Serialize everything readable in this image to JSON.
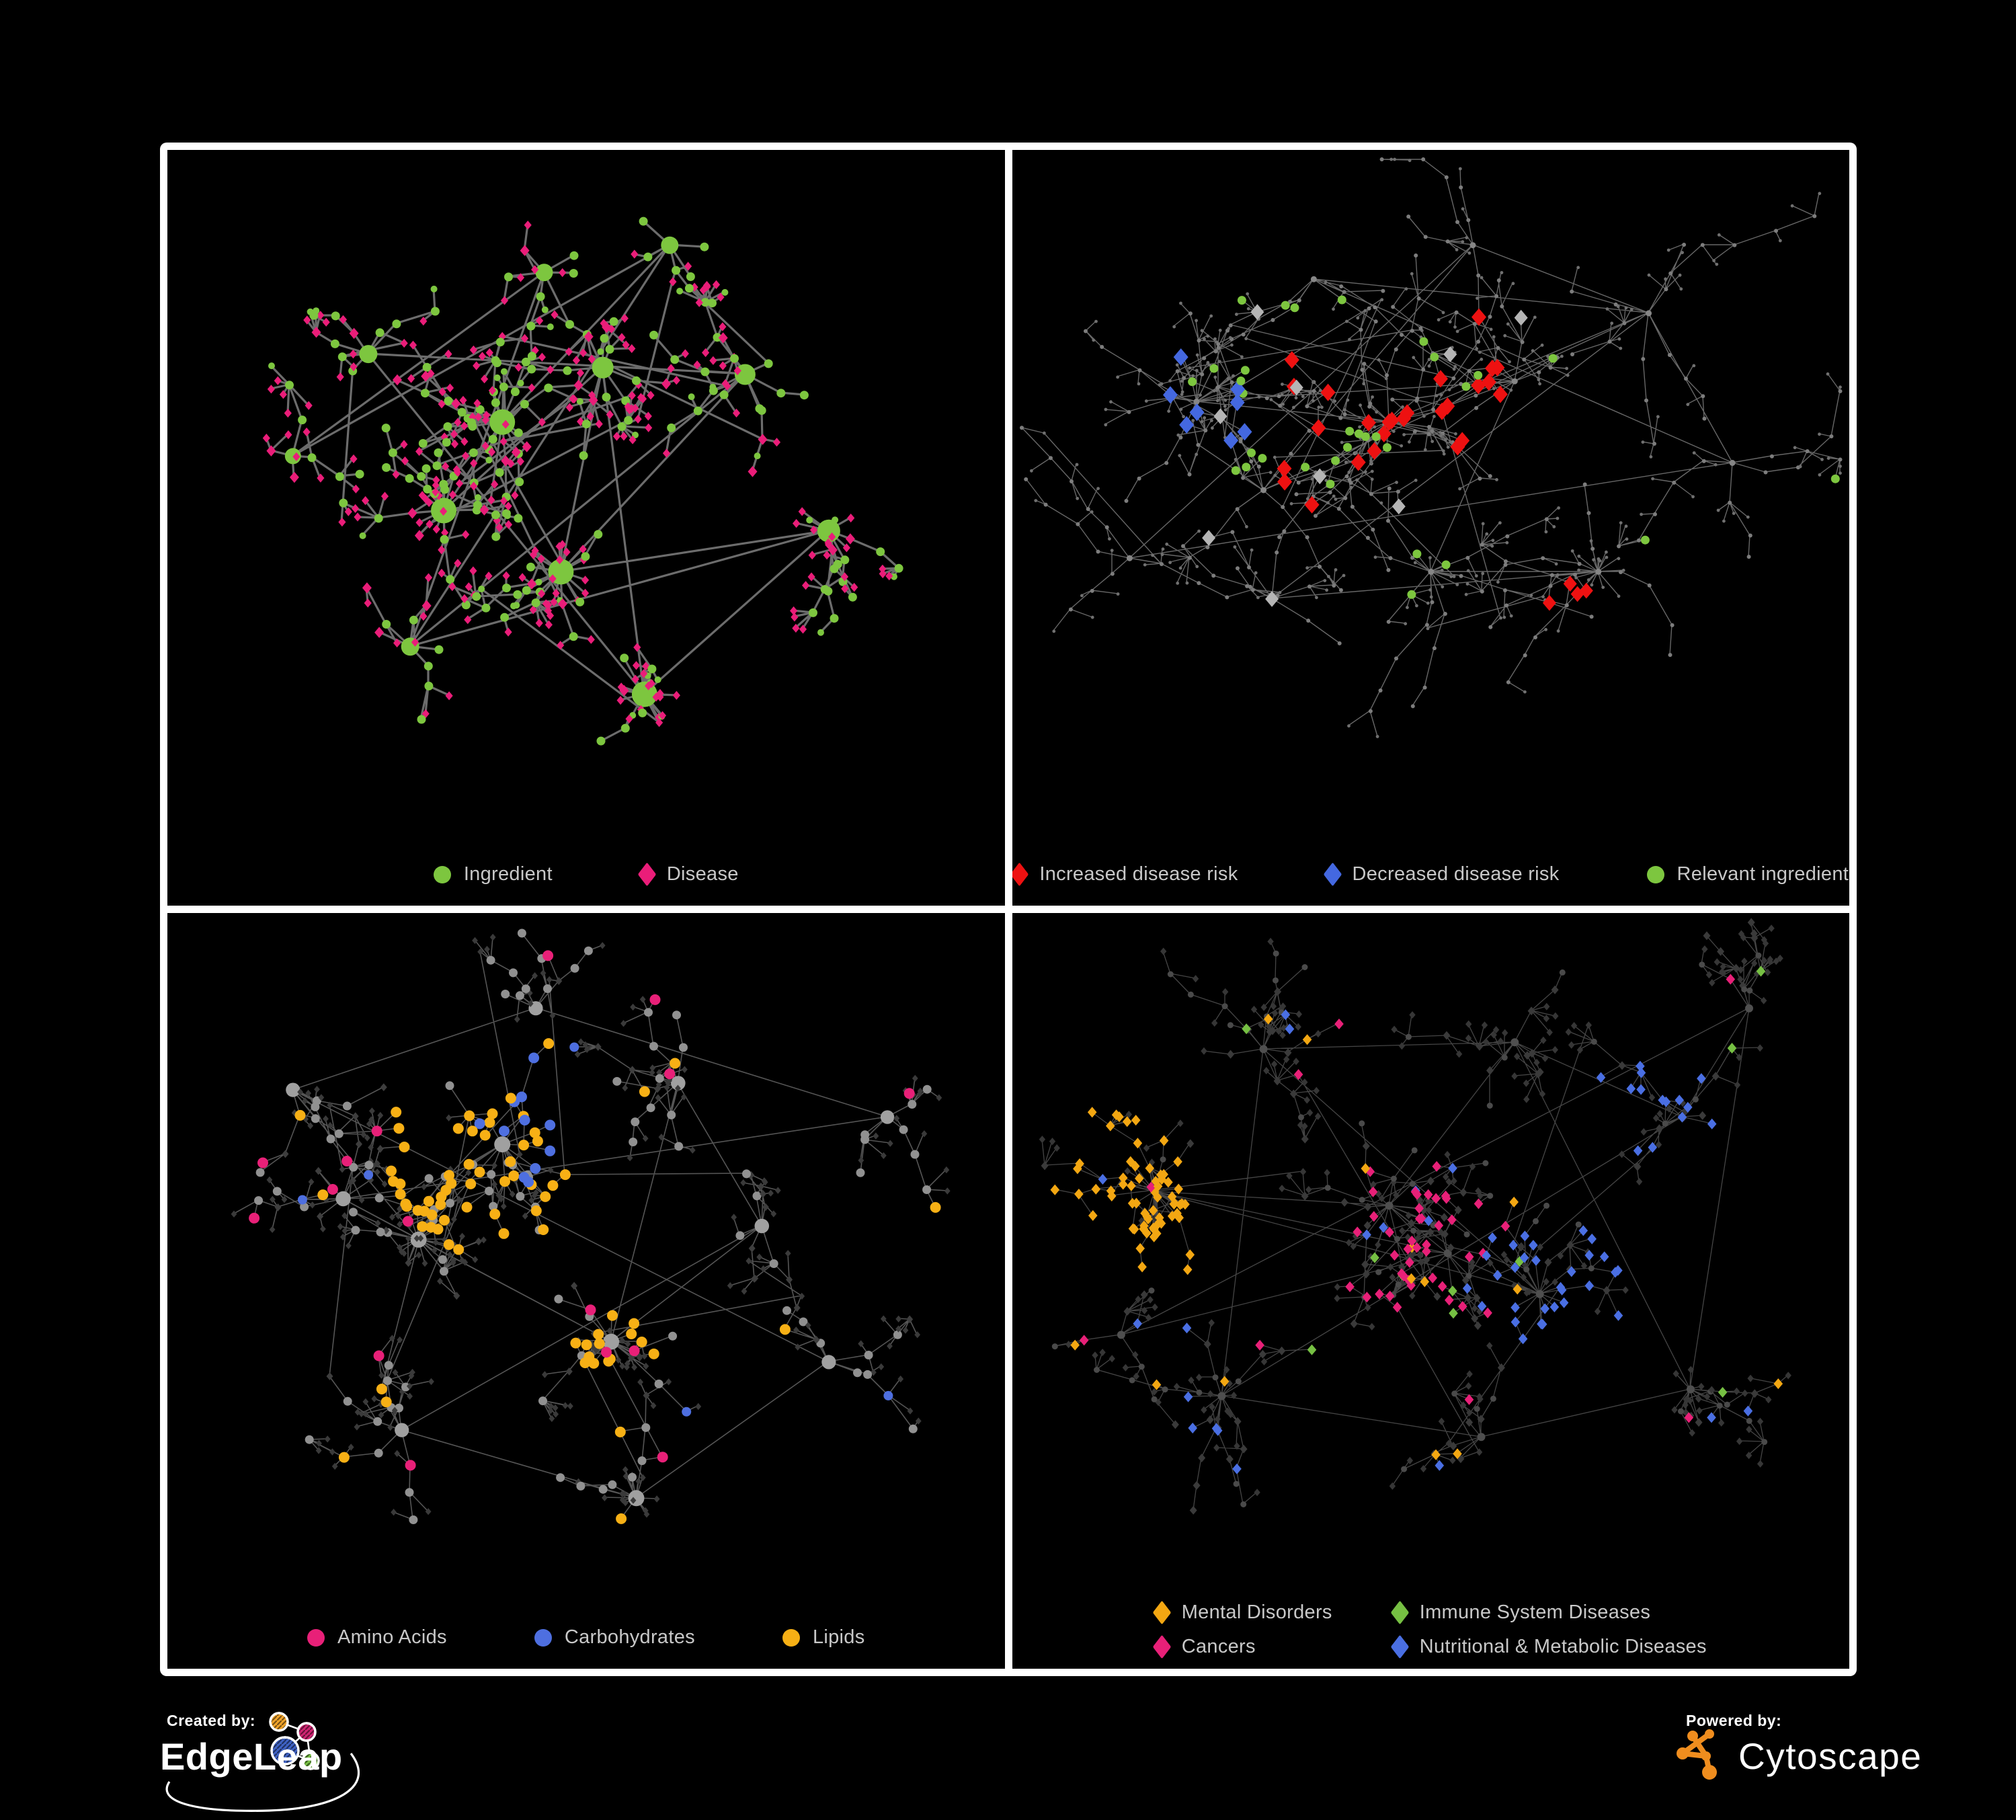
{
  "figure": {
    "background": "#000000",
    "frame_color": "#ffffff"
  },
  "footer": {
    "created_by": "Created by:",
    "edgeleap_brand": "EdgeLeap",
    "powered_by": "Powered by:",
    "cytoscape_brand": "Cytoscape",
    "edgeleap_colors": {
      "orange": "#f0a329",
      "pink": "#cf2572",
      "blue": "#3f62c4",
      "green": "#76c043"
    },
    "cytoscape_orange": "#ef8d1e"
  },
  "panels": [
    {
      "id": "ingredient-disease",
      "legend": {
        "columns": 3,
        "items": [
          {
            "shape": "circle",
            "color": "#7dc63f",
            "label": "Ingredient"
          },
          {
            "shape": "diamond",
            "color": "#ea1d79",
            "label": "Disease"
          }
        ]
      },
      "net": {
        "seed": 7,
        "steps": [
          1,
          3
        ],
        "step": [
          28,
          62
        ],
        "fan": 8,
        "edge": {
          "color": "#7f7f7f",
          "width": 3.2,
          "opacity": 0.85
        },
        "hubScale": 0.5,
        "hubMax": 19,
        "base": {
          "hub": {
            "shape": "circle",
            "color": "#7dc63f",
            "r": 9
          },
          "mid": {
            "shape": "circle",
            "color": "#7dc63f",
            "r": 6.5,
            "alt": {
              "shape": "diamond",
              "color": "#ea1d79",
              "r": 7,
              "prob": 0.16
            }
          },
          "leaf": {
            "shape": "diamond",
            "color": "#ea1d79",
            "r": 5.6,
            "alt": {
              "shape": "circle",
              "color": "#7dc63f",
              "r": 5,
              "prob": 0.12
            }
          }
        },
        "clusters": [
          [
            0.4,
            0.4,
            16,
            0
          ],
          [
            0.33,
            0.53,
            13,
            6
          ],
          [
            0.52,
            0.32,
            9,
            0
          ],
          [
            0.47,
            0.62,
            8,
            14
          ],
          [
            0.69,
            0.33,
            9,
            0
          ],
          [
            0.24,
            0.3,
            6,
            0
          ],
          [
            0.57,
            0.8,
            5,
            18
          ],
          [
            0.79,
            0.56,
            5,
            8
          ],
          [
            0.29,
            0.73,
            5,
            0
          ],
          [
            0.6,
            0.14,
            5,
            0
          ],
          [
            0.15,
            0.45,
            4,
            0
          ],
          [
            0.45,
            0.18,
            5,
            0
          ]
        ],
        "specials": []
      }
    },
    {
      "id": "disease-risk",
      "legend": {
        "columns": 3,
        "items": [
          {
            "shape": "diamond",
            "color": "#ee1111",
            "label": "Increased disease risk"
          },
          {
            "shape": "diamond",
            "color": "#4468e0",
            "label": "Decreased disease risk"
          },
          {
            "shape": "circle",
            "color": "#7dc63f",
            "label": "Relevant ingredient"
          }
        ]
      },
      "net": {
        "seed": 19,
        "steps": [
          2,
          5
        ],
        "step": [
          30,
          72
        ],
        "fan": 7,
        "edge": {
          "color": "#8a8a8a",
          "width": 1.4,
          "opacity": 0.75
        },
        "hubScale": 0,
        "hubMax": 5,
        "base": {
          "hub": {
            "shape": "circle",
            "color": "#868686",
            "r": 4.5
          },
          "mid": {
            "shape": "circle",
            "color": "#7d7d7d",
            "r": 3
          },
          "leaf": {
            "shape": "circle",
            "color": "#707070",
            "r": 2.4
          }
        },
        "clusters": [
          [
            0.45,
            0.4,
            16,
            0
          ],
          [
            0.22,
            0.37,
            10,
            4
          ],
          [
            0.6,
            0.34,
            8,
            0
          ],
          [
            0.5,
            0.62,
            7,
            10
          ],
          [
            0.7,
            0.62,
            6,
            16
          ],
          [
            0.31,
            0.66,
            6,
            0
          ],
          [
            0.76,
            0.24,
            6,
            0
          ],
          [
            0.36,
            0.19,
            6,
            0
          ],
          [
            0.86,
            0.46,
            4,
            0
          ],
          [
            0.14,
            0.6,
            4,
            0
          ],
          [
            0.55,
            0.14,
            4,
            0
          ],
          [
            0.3,
            0.5,
            8,
            0
          ]
        ],
        "specials": [
          {
            "shape": "diamond",
            "color": "#ee1111",
            "r": 11,
            "count": 26,
            "near": [
              0.47,
              0.4
            ],
            "radius": 0.2
          },
          {
            "shape": "diamond",
            "color": "#ee1111",
            "r": 10,
            "count": 4,
            "near": [
              0.7,
              0.72
            ],
            "radius": 0.1
          },
          {
            "shape": "diamond",
            "color": "#4468e0",
            "r": 11,
            "count": 8,
            "near": [
              0.21,
              0.37
            ],
            "radius": 0.1
          },
          {
            "shape": "diamond",
            "color": "#4468e0",
            "r": 10,
            "count": 3,
            "near": [
              0.88,
              0.24
            ],
            "radius": 0.05
          },
          {
            "shape": "diamond",
            "color": "#b5b5b5",
            "r": 10,
            "count": 9,
            "near": [
              0.42,
              0.42
            ],
            "radius": 0.3
          },
          {
            "shape": "circle",
            "color": "#7dc63f",
            "r": 6.5,
            "count": 26,
            "near": [
              0.42,
              0.4
            ],
            "radius": 0.26
          },
          {
            "shape": "circle",
            "color": "#7dc63f",
            "r": 6.5,
            "count": 6
          }
        ]
      }
    },
    {
      "id": "nutrient-classes",
      "legend": {
        "columns": 3,
        "items": [
          {
            "shape": "circle",
            "color": "#e82078",
            "label": "Amino Acids"
          },
          {
            "shape": "circle",
            "color": "#4e6fe0",
            "label": "Carbohydrates"
          },
          {
            "shape": "circle",
            "color": "#f7b015",
            "label": "Lipids"
          }
        ]
      },
      "net": {
        "seed": 37,
        "steps": [
          1,
          3
        ],
        "step": [
          28,
          62
        ],
        "fan": 8,
        "edge": {
          "color": "#aaaaaa",
          "width": 1.6,
          "opacity": 0.5
        },
        "hubScale": 0.2,
        "hubMax": 12,
        "base": {
          "hub": {
            "shape": "circle",
            "color": "#a0a0a0",
            "r": 9
          },
          "mid": {
            "shape": "circle",
            "color": "#919191",
            "r": 6.5,
            "alt": {
              "shape": "diamond",
              "color": "#3e3e3e",
              "r": 5,
              "prob": 0.3
            }
          },
          "leaf": {
            "shape": "diamond",
            "color": "#3a3a3a",
            "r": 4.4
          }
        },
        "clusters": [
          [
            0.4,
            0.34,
            14,
            0
          ],
          [
            0.3,
            0.48,
            14,
            8
          ],
          [
            0.21,
            0.42,
            8,
            0
          ],
          [
            0.53,
            0.63,
            7,
            20
          ],
          [
            0.61,
            0.25,
            6,
            0
          ],
          [
            0.71,
            0.46,
            6,
            0
          ],
          [
            0.28,
            0.76,
            6,
            0
          ],
          [
            0.56,
            0.86,
            4,
            14
          ],
          [
            0.79,
            0.66,
            5,
            0
          ],
          [
            0.15,
            0.26,
            4,
            0
          ],
          [
            0.44,
            0.14,
            5,
            0
          ],
          [
            0.86,
            0.3,
            4,
            0
          ]
        ],
        "specials": [
          {
            "shape": "circle",
            "color": "#f7b015",
            "r": 8,
            "count": 48,
            "near": [
              0.4,
              0.34
            ],
            "radius": 0.17
          },
          {
            "shape": "circle",
            "color": "#f7b015",
            "r": 8,
            "count": 12,
            "near": [
              0.53,
              0.64
            ],
            "radius": 0.07
          },
          {
            "shape": "circle",
            "color": "#f7b015",
            "r": 8,
            "count": 16
          },
          {
            "shape": "circle",
            "color": "#4e6fe0",
            "r": 8,
            "count": 11,
            "near": [
              0.43,
              0.3
            ],
            "radius": 0.11
          },
          {
            "shape": "circle",
            "color": "#4e6fe0",
            "r": 7,
            "count": 5
          },
          {
            "shape": "circle",
            "color": "#e82078",
            "r": 8,
            "count": 16
          }
        ]
      }
    },
    {
      "id": "disease-classes",
      "legend": {
        "columns": 2,
        "items": [
          {
            "shape": "diamond",
            "color": "#f3a712",
            "label": "Mental Disorders"
          },
          {
            "shape": "diamond",
            "color": "#76c043",
            "label": "Immune System Diseases"
          },
          {
            "shape": "diamond",
            "color": "#e82078",
            "label": "Cancers"
          },
          {
            "shape": "diamond",
            "color": "#4a6fe3",
            "label": "Nutritional & Metabolic Diseases"
          }
        ]
      },
      "net": {
        "seed": 53,
        "steps": [
          1,
          4
        ],
        "step": [
          26,
          58
        ],
        "fan": 8,
        "edge": {
          "color": "#999999",
          "width": 1.3,
          "opacity": 0.45
        },
        "hubScale": 0,
        "hubMax": 7,
        "base": {
          "hub": {
            "shape": "circle",
            "color": "#4f4f4f",
            "r": 6
          },
          "mid": {
            "shape": "diamond",
            "color": "#3a3a3a",
            "r": 5.5,
            "alt": {
              "shape": "circle",
              "color": "#4a4a4a",
              "r": 4.5,
              "prob": 0.4
            }
          },
          "leaf": {
            "shape": "diamond",
            "color": "#363636",
            "r": 4.7
          }
        },
        "clusters": [
          [
            0.17,
            0.41,
            14,
            10
          ],
          [
            0.45,
            0.43,
            16,
            0
          ],
          [
            0.52,
            0.5,
            8,
            0
          ],
          [
            0.63,
            0.56,
            7,
            16
          ],
          [
            0.3,
            0.2,
            8,
            0
          ],
          [
            0.6,
            0.19,
            6,
            0
          ],
          [
            0.8,
            0.3,
            6,
            0
          ],
          [
            0.25,
            0.71,
            7,
            10
          ],
          [
            0.56,
            0.77,
            6,
            0
          ],
          [
            0.81,
            0.7,
            5,
            8
          ],
          [
            0.88,
            0.14,
            4,
            0
          ],
          [
            0.13,
            0.62,
            4,
            0
          ]
        ],
        "specials": [
          {
            "shape": "diamond",
            "color": "#f3a712",
            "r": 6.8,
            "count": 64,
            "near": [
              0.16,
              0.4
            ],
            "radius": 0.14
          },
          {
            "shape": "diamond",
            "color": "#f3a712",
            "r": 6.8,
            "count": 14
          },
          {
            "shape": "diamond",
            "color": "#e82078",
            "r": 6.8,
            "count": 40,
            "near": [
              0.47,
              0.51
            ],
            "radius": 0.15
          },
          {
            "shape": "diamond",
            "color": "#e82078",
            "r": 6.8,
            "count": 10
          },
          {
            "shape": "diamond",
            "color": "#4a6fe3",
            "r": 6.8,
            "count": 26,
            "near": [
              0.64,
              0.56
            ],
            "radius": 0.11
          },
          {
            "shape": "diamond",
            "color": "#4a6fe3",
            "r": 6.8,
            "count": 14,
            "near": [
              0.78,
              0.24
            ],
            "radius": 0.13
          },
          {
            "shape": "diamond",
            "color": "#4a6fe3",
            "r": 6.8,
            "count": 22
          },
          {
            "shape": "diamond",
            "color": "#76c043",
            "r": 6.8,
            "count": 10
          }
        ]
      }
    }
  ]
}
